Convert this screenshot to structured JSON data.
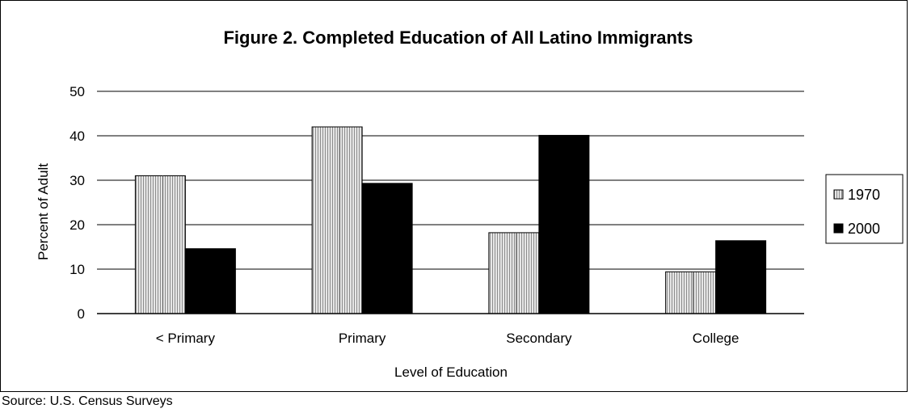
{
  "chart_data": {
    "type": "bar",
    "title": "Figure 2. Completed Education of All Latino Immigrants",
    "xlabel": "Level of Education",
    "ylabel": "Percent of Adult",
    "categories": [
      "< Primary",
      "Primary",
      "Secondary",
      "College"
    ],
    "series": [
      {
        "name": "1970",
        "values": [
          31,
          42,
          18.2,
          9.4
        ],
        "color": "#c8c8c8",
        "pattern": "vertical-hatch"
      },
      {
        "name": "2000",
        "values": [
          14.6,
          29.3,
          40.1,
          16.4
        ],
        "color": "#000000"
      }
    ],
    "ylim": [
      0,
      50
    ],
    "yticks": [
      0,
      10,
      20,
      30,
      40,
      50
    ],
    "grid": true,
    "legend_position": "right"
  },
  "source": "Source: U.S. Census Surveys"
}
